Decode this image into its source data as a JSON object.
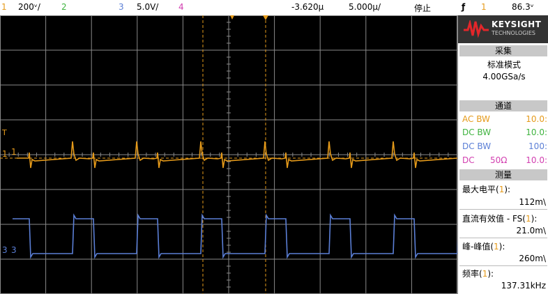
{
  "topbar": {
    "ch1_num": "1",
    "ch1_scale": "200ᵛ/",
    "ch2_num": "2",
    "ch3_num": "3",
    "ch3_scale": "5.0V/",
    "ch4_num": "4",
    "delay": "-3.620µ",
    "timebase": "5.000µ/",
    "run_state": "停止",
    "trigger_icon": "ƒ",
    "trig_ch": "1",
    "trig_level": "86.3ᵛ"
  },
  "colors": {
    "ch1": "#e59a1a",
    "ch2": "#3fb33f",
    "ch3": "#5b7fd6",
    "ch4": "#d23fb0",
    "grid": "#8a8a8a"
  },
  "logo": {
    "brand": "KEYSIGHT",
    "sub": "TECHNOLOGIES"
  },
  "acquire": {
    "header": "采集",
    "mode": "标准模式",
    "rate": "4.00GSa/s"
  },
  "channels": {
    "header": "通道",
    "rows": [
      {
        "coupling": "AC BW",
        "imp": "",
        "scale": "10.0:"
      },
      {
        "coupling": "DC BW",
        "imp": "",
        "scale": "10.0:"
      },
      {
        "coupling": "DC BW",
        "imp": "",
        "scale": "100:"
      },
      {
        "coupling": "DC",
        "imp": "50Ω",
        "scale": "10.0:"
      }
    ]
  },
  "measure": {
    "header": "测量",
    "items": [
      {
        "label": "最大电平(",
        "ch": "1",
        "close": "):",
        "value": "112m\\"
      },
      {
        "label": "直流有效值 - FS(",
        "ch": "1",
        "close": "):",
        "value": "21.0m\\"
      },
      {
        "label": "峰-峰值(",
        "ch": "1",
        "close": "):",
        "value": "260m\\"
      },
      {
        "label": "频率(",
        "ch": "1",
        "close": "):",
        "value": "137.31kHz"
      }
    ]
  },
  "markers": {
    "ch1_label": "1",
    "ch3_label": "3",
    "trig_top": "T"
  }
}
